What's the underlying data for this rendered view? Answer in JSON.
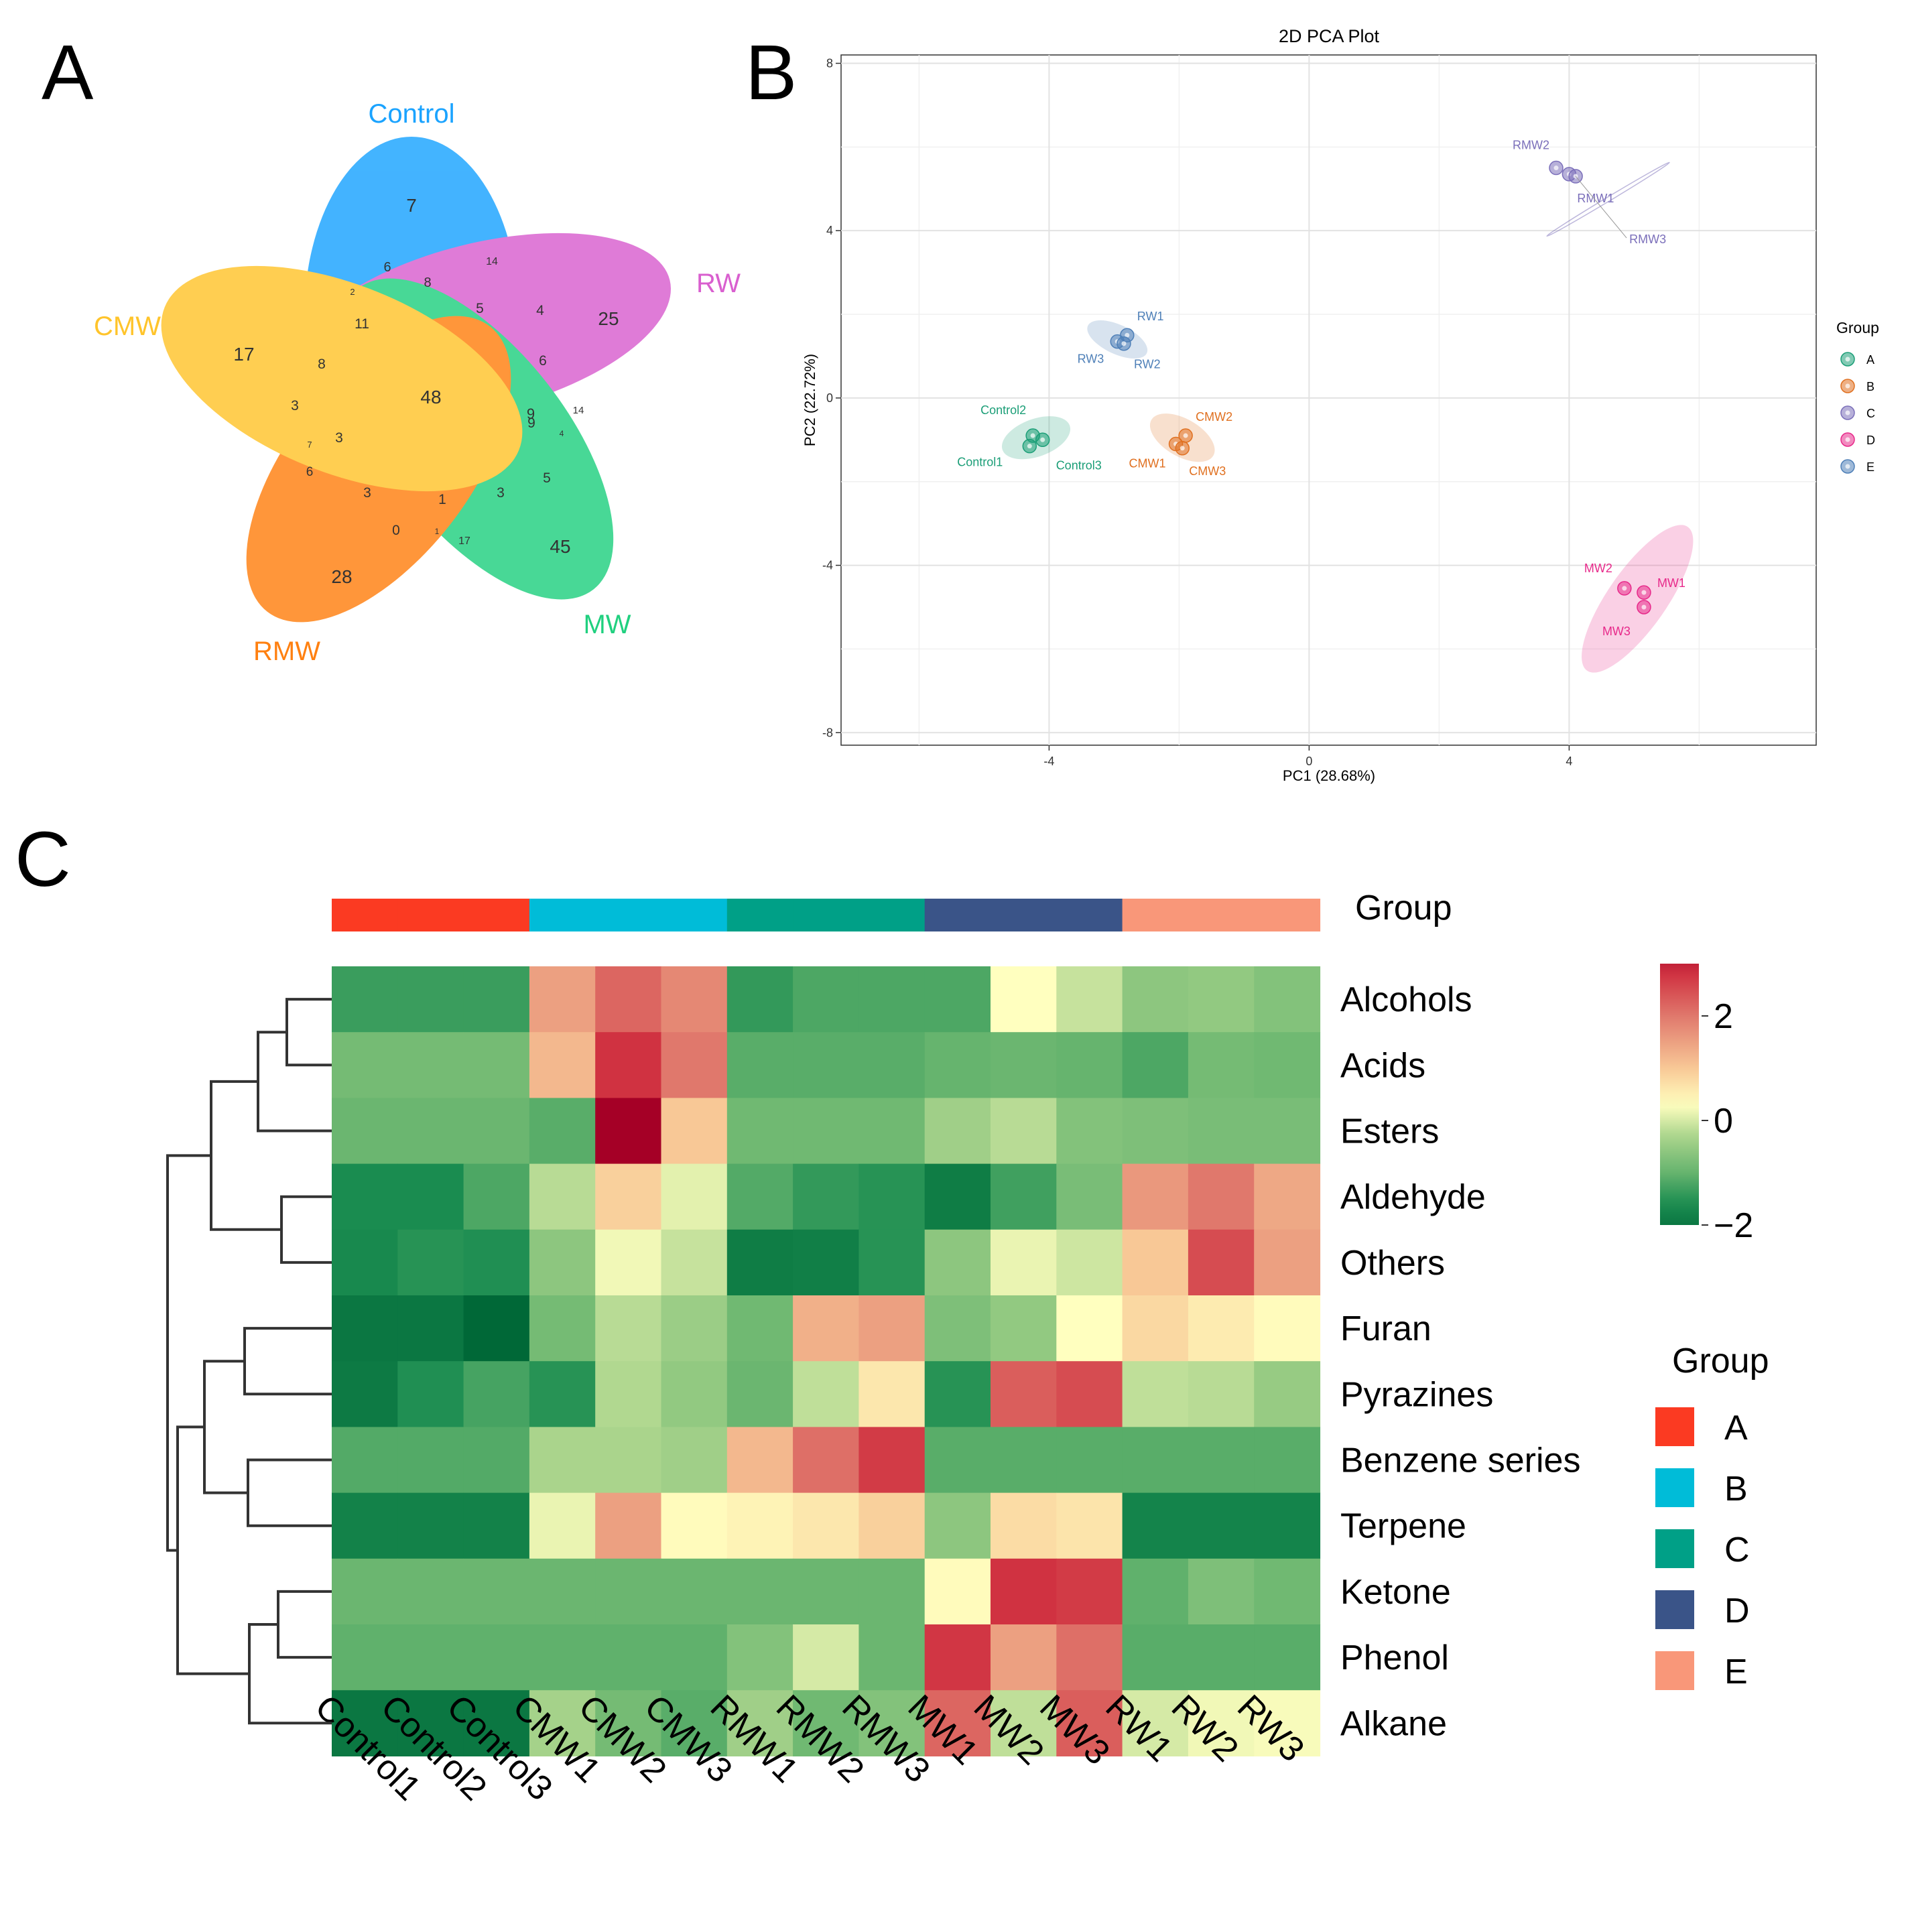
{
  "panels": {
    "a": "A",
    "b": "B",
    "c": "C"
  },
  "chart_data": [
    {
      "type": "venn",
      "panel": "A",
      "sets": [
        {
          "name": "Control",
          "color": "#1aa3ff",
          "only": 7
        },
        {
          "name": "RW",
          "color": "#d95fcf",
          "only": 25
        },
        {
          "name": "MW",
          "color": "#20d07f",
          "only": 45
        },
        {
          "name": "RMW",
          "color": "#ff8010",
          "only": 28
        },
        {
          "name": "CMW",
          "color": "#ffc42b",
          "only": 17
        }
      ],
      "all_sets": 48,
      "region_labels": [
        "6",
        "8",
        "14",
        "9",
        "2",
        "11",
        "5",
        "4",
        "6",
        "8",
        "3",
        "3",
        "7",
        "6",
        "3",
        "0",
        "1",
        "1",
        "17",
        "3",
        "5",
        "9",
        "4",
        "14"
      ]
    },
    {
      "type": "scatter",
      "panel": "B",
      "title": "2D PCA Plot",
      "xlabel": "PC1 (28.68%)",
      "ylabel": "PC2 (22.72%)",
      "xlim": [
        -7.2,
        7.8
      ],
      "ylim": [
        -8.3,
        8.2
      ],
      "xticks": [
        -4,
        0,
        4
      ],
      "yticks": [
        -8,
        -4,
        0,
        4,
        8
      ],
      "legend_title": "Group",
      "legend_position": "right",
      "groups": [
        {
          "name": "A",
          "color": "#1b9e77",
          "ellipse": {
            "cx": -4.2,
            "cy": -0.95,
            "rx": 0.55,
            "ry": 0.45,
            "angle": 20
          },
          "points": [
            {
              "label": "Control1",
              "x": -4.3,
              "y": -1.15
            },
            {
              "label": "Control2",
              "x": -4.25,
              "y": -0.9
            },
            {
              "label": "Control3",
              "x": -4.1,
              "y": -1.0
            }
          ]
        },
        {
          "name": "B",
          "color": "#e07020",
          "ellipse": {
            "cx": -1.95,
            "cy": -0.95,
            "rx": 0.55,
            "ry": 0.45,
            "angle": -30
          },
          "points": [
            {
              "label": "CMW1",
              "x": -2.05,
              "y": -1.1
            },
            {
              "label": "CMW2",
              "x": -1.9,
              "y": -0.9
            },
            {
              "label": "CMW3",
              "x": -1.95,
              "y": -1.2
            }
          ]
        },
        {
          "name": "C",
          "color": "#7b6fba",
          "ellipse": {
            "cx": 4.6,
            "cy": 4.75,
            "rx": 1.1,
            "ry": 0.05,
            "angle": 31
          },
          "points": [
            {
              "label": "RMW2",
              "x": 3.8,
              "y": 5.5
            },
            {
              "label": "RMW1",
              "x": 4.0,
              "y": 5.35
            },
            {
              "label": "RMW3",
              "x": 4.1,
              "y": 5.3
            }
          ]
        },
        {
          "name": "D",
          "color": "#e7298a",
          "ellipse": {
            "cx": 5.05,
            "cy": -4.8,
            "rx": 1.35,
            "ry": 0.7,
            "angle": 55
          },
          "points": [
            {
              "label": "MW2",
              "x": 4.85,
              "y": -4.55
            },
            {
              "label": "MW1",
              "x": 5.15,
              "y": -4.65
            },
            {
              "label": "MW3",
              "x": 5.15,
              "y": -5.0
            }
          ]
        },
        {
          "name": "E",
          "color": "#4f80b8",
          "ellipse": {
            "cx": -2.95,
            "cy": 1.4,
            "rx": 0.5,
            "ry": 0.35,
            "angle": -25
          },
          "points": [
            {
              "label": "RW3",
              "x": -2.95,
              "y": 1.35
            },
            {
              "label": "RW1",
              "x": -2.8,
              "y": 1.5
            },
            {
              "label": "RW2",
              "x": -2.85,
              "y": 1.3
            }
          ]
        }
      ]
    },
    {
      "type": "heatmap",
      "panel": "C",
      "columns": [
        "Control1",
        "Control2",
        "Control3",
        "CMW1",
        "CMW2",
        "CMW3",
        "RMW1",
        "RMW2",
        "RMW3",
        "MW1",
        "MW2",
        "MW3",
        "RW1",
        "RW2",
        "RW3"
      ],
      "rows": [
        "Alcohols",
        "Acids",
        "Esters",
        "Aldehyde",
        "Others",
        "Furan",
        "Pyrazines",
        "Benzene series",
        "Terpene",
        "Ketone",
        "Phenol",
        "Alkane"
      ],
      "column_groups": [
        "A",
        "A",
        "A",
        "B",
        "B",
        "B",
        "C",
        "C",
        "C",
        "D",
        "D",
        "D",
        "E",
        "E",
        "E"
      ],
      "group_colors": {
        "A": "#fb3a22",
        "B": "#00bcd8",
        "C": "#00a087",
        "D": "#3a5488",
        "E": "#f99779"
      },
      "group_annotation_label": "Group",
      "colorbar": {
        "min": -2,
        "max": 3,
        "ticks": [
          "2",
          "0",
          "−2"
        ],
        "tick_values": [
          2,
          0,
          -2
        ]
      },
      "legend_title": "Group",
      "values": [
        [
          -1.35,
          -1.35,
          -1.35,
          1.5,
          2.2,
          1.8,
          -1.4,
          -1.2,
          -1.2,
          -1.2,
          0.3,
          -0.1,
          -0.6,
          -0.55,
          -0.7
        ],
        [
          -0.85,
          -0.85,
          -0.85,
          1.2,
          2.8,
          2.0,
          -1.1,
          -1.1,
          -1.1,
          -1.0,
          -0.95,
          -1.0,
          -1.2,
          -0.85,
          -0.9
        ],
        [
          -0.95,
          -0.95,
          -0.95,
          -1.1,
          3.4,
          1.0,
          -0.9,
          -0.9,
          -0.9,
          -0.4,
          -0.2,
          -0.7,
          -0.75,
          -0.8,
          -0.8
        ],
        [
          -1.6,
          -1.6,
          -1.2,
          -0.2,
          0.9,
          0.1,
          -1.15,
          -1.4,
          -1.5,
          -1.9,
          -1.3,
          -0.8,
          1.6,
          2.0,
          1.4
        ],
        [
          -1.65,
          -1.5,
          -1.55,
          -0.6,
          0.2,
          -0.1,
          -1.9,
          -1.85,
          -1.5,
          -0.6,
          0.15,
          -0.05,
          1.0,
          2.5,
          1.5
        ],
        [
          -2.0,
          -2.0,
          -2.3,
          -0.85,
          -0.2,
          -0.45,
          -0.9,
          1.3,
          1.5,
          -0.75,
          -0.55,
          0.3,
          0.8,
          0.55,
          0.35
        ],
        [
          -1.95,
          -1.55,
          -1.25,
          -1.5,
          -0.25,
          -0.55,
          -0.95,
          -0.15,
          0.6,
          -1.5,
          2.3,
          2.5,
          -0.15,
          -0.2,
          -0.5
        ],
        [
          -1.15,
          -1.15,
          -1.15,
          -0.3,
          -0.3,
          -0.4,
          1.2,
          2.1,
          2.7,
          -1.1,
          -1.1,
          -1.1,
          -1.1,
          -1.1,
          -1.1
        ],
        [
          -1.8,
          -1.8,
          -1.8,
          0.15,
          1.5,
          0.35,
          0.45,
          0.6,
          0.9,
          -0.6,
          0.75,
          0.65,
          -1.75,
          -1.75,
          -1.75
        ],
        [
          -0.95,
          -0.95,
          -0.95,
          -0.95,
          -0.95,
          -0.95,
          -0.95,
          -0.95,
          -0.95,
          0.35,
          2.8,
          2.7,
          -1.05,
          -0.75,
          -0.9
        ],
        [
          -1.05,
          -1.05,
          -1.05,
          -1.05,
          -1.05,
          -1.05,
          -0.7,
          0.0,
          -0.95,
          2.75,
          1.5,
          2.1,
          -1.1,
          -1.1,
          -1.1
        ],
        [
          -2.0,
          -2.0,
          -2.0,
          -0.35,
          -0.85,
          -1.1,
          -0.4,
          -0.9,
          -0.7,
          2.2,
          -0.15,
          2.3,
          0.0,
          0.2,
          0.25
        ]
      ]
    }
  ]
}
